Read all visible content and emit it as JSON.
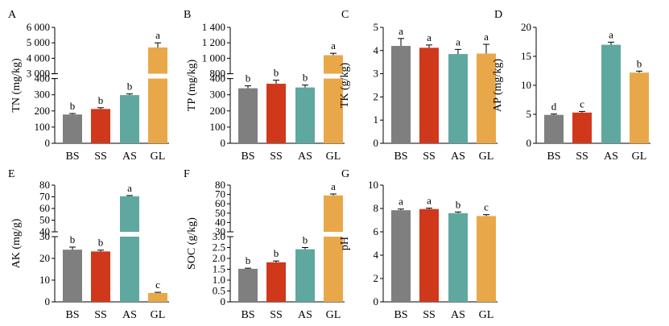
{
  "colors": {
    "BS": "#7f7f7f",
    "SS": "#d0381c",
    "AS": "#5fa8a0",
    "GL": "#e8a84a"
  },
  "chart_data": [
    {
      "panel": "A",
      "type": "bar",
      "ylabel": "TN (mg/kg)",
      "categories": [
        "BS",
        "SS",
        "AS",
        "GL"
      ],
      "values": [
        178,
        212,
        298,
        4700
      ],
      "errors": [
        6,
        8,
        7,
        300
      ],
      "significance": [
        "b",
        "b",
        "b",
        "a"
      ],
      "axis_break": true,
      "lower": {
        "range": [
          0,
          400
        ],
        "ticks": [
          0,
          100,
          200,
          300,
          400
        ],
        "tick_labels": [
          "0",
          "100",
          "200",
          "300",
          "400"
        ]
      },
      "upper": {
        "range": [
          3000,
          6000
        ],
        "ticks": [
          3000,
          4000,
          5000,
          6000
        ],
        "tick_labels": [
          "3 000",
          "4 000",
          "5 000",
          "6 000"
        ]
      }
    },
    {
      "panel": "B",
      "type": "bar",
      "ylabel": "TP (mg/kg)",
      "categories": [
        "BS",
        "SS",
        "AS",
        "GL"
      ],
      "values": [
        340,
        368,
        345,
        1040
      ],
      "errors": [
        15,
        22,
        15,
        25
      ],
      "significance": [
        "b",
        "b",
        "b",
        "a"
      ],
      "axis_break": true,
      "lower": {
        "range": [
          0,
          400
        ],
        "ticks": [
          0,
          100,
          200,
          300,
          400
        ],
        "tick_labels": [
          "0",
          "100",
          "200",
          "300",
          "400"
        ]
      },
      "upper": {
        "range": [
          800,
          1400
        ],
        "ticks": [
          800,
          1000,
          1200,
          1400
        ],
        "tick_labels": [
          "800",
          "1 000",
          "1 200",
          "1 400"
        ]
      }
    },
    {
      "panel": "C",
      "type": "bar",
      "ylabel": "TK (g/kg)",
      "categories": [
        "BS",
        "SS",
        "AS",
        "GL"
      ],
      "values": [
        4.2,
        4.12,
        3.85,
        3.87
      ],
      "errors": [
        0.32,
        0.12,
        0.2,
        0.4
      ],
      "significance": [
        "a",
        "a",
        "a",
        "a"
      ],
      "axis_break": false,
      "range": [
        0,
        5
      ],
      "ticks": [
        0,
        1,
        2,
        3,
        4,
        5
      ],
      "tick_labels": [
        "0",
        "1",
        "2",
        "3",
        "4",
        "5"
      ]
    },
    {
      "panel": "D",
      "type": "bar",
      "ylabel": "AP (mg/kg)",
      "categories": [
        "BS",
        "SS",
        "AS",
        "GL"
      ],
      "values": [
        4.9,
        5.3,
        17.0,
        12.2
      ],
      "errors": [
        0.15,
        0.2,
        0.45,
        0.25
      ],
      "significance": [
        "d",
        "c",
        "a",
        "b"
      ],
      "axis_break": false,
      "range": [
        0,
        20
      ],
      "ticks": [
        0,
        5,
        10,
        15,
        20
      ],
      "tick_labels": [
        "0",
        "5",
        "10",
        "15",
        "20"
      ]
    },
    {
      "panel": "E",
      "type": "bar",
      "ylabel": "AK (mg/g)",
      "categories": [
        "BS",
        "SS",
        "AS",
        "GL"
      ],
      "values": [
        24.0,
        23.2,
        70.5,
        4.1
      ],
      "errors": [
        1.2,
        0.6,
        0.6,
        0.3
      ],
      "significance": [
        "b",
        "b",
        "a",
        "c"
      ],
      "axis_break": true,
      "lower": {
        "range": [
          0,
          30
        ],
        "ticks": [
          0,
          10,
          20,
          30
        ],
        "tick_labels": [
          "0",
          "10",
          "20",
          "30"
        ]
      },
      "upper": {
        "range": [
          40,
          80
        ],
        "ticks": [
          40,
          50,
          60,
          70,
          80
        ],
        "tick_labels": [
          "40",
          "50",
          "60",
          "70",
          "80"
        ]
      }
    },
    {
      "panel": "F",
      "type": "bar",
      "ylabel": "SOC (g/kg)",
      "categories": [
        "BS",
        "SS",
        "AS",
        "GL"
      ],
      "values": [
        1.52,
        1.82,
        2.42,
        69
      ],
      "errors": [
        0.03,
        0.06,
        0.08,
        1.5
      ],
      "significance": [
        "b",
        "b",
        "b",
        "a"
      ],
      "axis_break": true,
      "lower": {
        "range": [
          0,
          3
        ],
        "ticks": [
          0,
          0.5,
          1.0,
          1.5,
          2.0,
          2.5,
          3.0
        ],
        "tick_labels": [
          "0",
          "0.5",
          "1.0",
          "1.5",
          "2.0",
          "2.5",
          "3.0"
        ]
      },
      "upper": {
        "range": [
          30,
          80
        ],
        "ticks": [
          30,
          40,
          50,
          60,
          70,
          80
        ],
        "tick_labels": [
          "30",
          "40",
          "50",
          "60",
          "70",
          "80"
        ]
      }
    },
    {
      "panel": "G",
      "type": "bar",
      "ylabel": "pH",
      "categories": [
        "BS",
        "SS",
        "AS",
        "GL"
      ],
      "values": [
        7.85,
        7.95,
        7.6,
        7.35
      ],
      "errors": [
        0.1,
        0.08,
        0.1,
        0.12
      ],
      "significance": [
        "a",
        "a",
        "b",
        "c"
      ],
      "axis_break": false,
      "range": [
        0,
        10
      ],
      "ticks": [
        0,
        2,
        4,
        6,
        8,
        10
      ],
      "tick_labels": [
        "0",
        "2",
        "4",
        "6",
        "8",
        "10"
      ]
    }
  ]
}
